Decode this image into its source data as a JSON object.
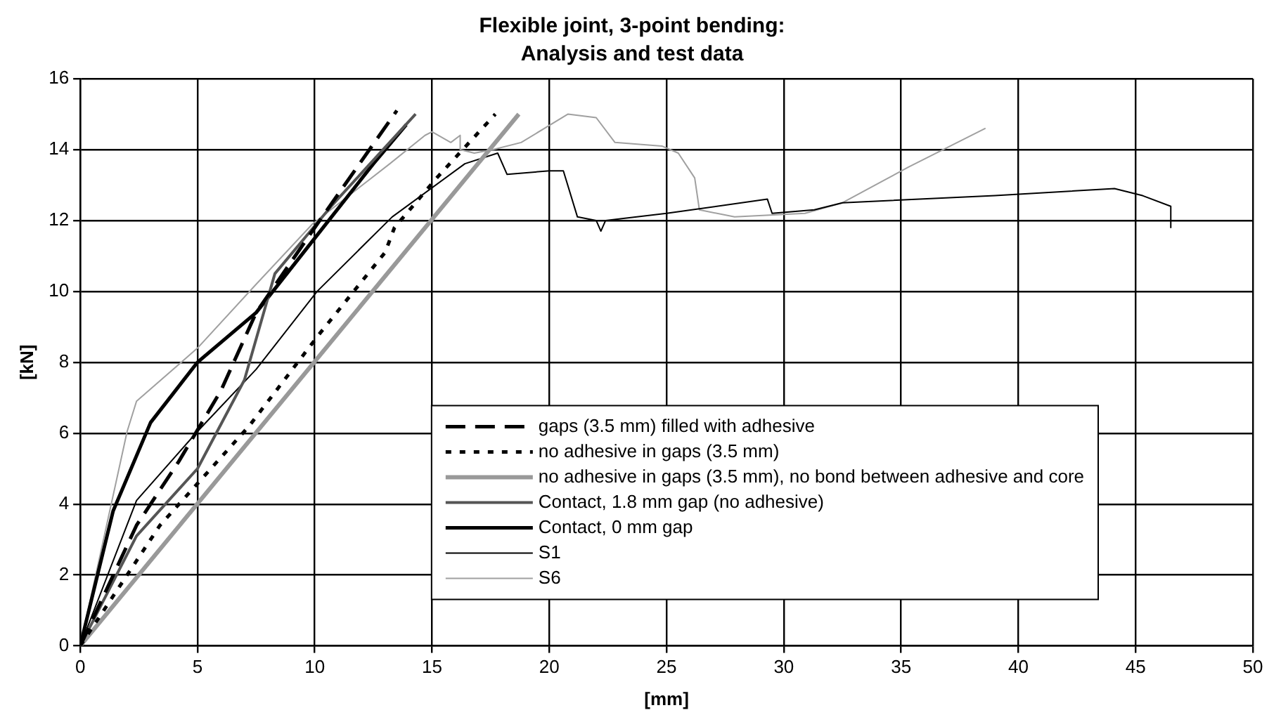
{
  "chart_data": {
    "type": "line",
    "title": "Flexible joint, 3-point bending:",
    "subtitle": "Analysis and test data",
    "xlabel": "[mm]",
    "ylabel": "[kN]",
    "xlim": [
      0,
      50
    ],
    "xticks": [
      0,
      5,
      10,
      15,
      20,
      25,
      30,
      35,
      40,
      45,
      50
    ],
    "ylim": [
      0,
      16
    ],
    "yticks": [
      0,
      2,
      4,
      6,
      8,
      10,
      12,
      14,
      16
    ],
    "grid": true,
    "legend": "bottom right",
    "marker": "none",
    "series": [
      {
        "name": "gaps (3.5 mm) filled with adhesive",
        "color": "#000000",
        "line_style": "dashed",
        "x": [
          0,
          2.4,
          4.2,
          6.0,
          7.5,
          10,
          13.5
        ],
        "values": [
          0,
          3.4,
          5.2,
          7.2,
          9.4,
          11.8,
          15.1
        ]
      },
      {
        "name": "no adhesive in gaps (3.5 mm)",
        "color": "#000000",
        "line_style": "dotted",
        "x": [
          0,
          3.4,
          7.2,
          10.2,
          13,
          13.4,
          15.2,
          17.7
        ],
        "values": [
          0,
          3.4,
          6.2,
          8.8,
          11.1,
          11.8,
          13.2,
          15.0
        ]
      },
      {
        "name": "no adhesive in gaps (3.5 mm), no bond between adhesive and core",
        "color": "#999999",
        "line_style": "solid",
        "x": [
          0,
          18.7
        ],
        "values": [
          0,
          15.0
        ]
      },
      {
        "name": "Contact, 1.8 mm gap (no adhesive)",
        "color": "#555555",
        "line_style": "solid",
        "x": [
          0,
          2.4,
          5,
          7,
          8.3,
          10.7,
          14.3
        ],
        "values": [
          0,
          3.1,
          5.0,
          7.5,
          10.5,
          12.4,
          15.0
        ]
      },
      {
        "name": "Contact, 0 mm gap",
        "color": "#000000",
        "line_style": "solid",
        "x": [
          0,
          1.4,
          3.0,
          5,
          7.5,
          10,
          12.5,
          13.9
        ],
        "values": [
          0,
          3.8,
          6.3,
          8.0,
          9.4,
          11.5,
          13.6,
          14.7
        ]
      },
      {
        "name": "S1",
        "color": "#000000",
        "line_style": "solid",
        "x": [
          0,
          2.4,
          5,
          7.5,
          10.1,
          13.3,
          16.4,
          17.8,
          18.2,
          20.0,
          20.6,
          21.2,
          22.0,
          22.2,
          22.4,
          25.0,
          29.3,
          29.5,
          31.3,
          32.5,
          39,
          44.1,
          45.3,
          46.5,
          46.5
        ],
        "values": [
          0,
          4.1,
          6.05,
          7.8,
          10.0,
          12.1,
          13.6,
          13.9,
          13.3,
          13.4,
          13.4,
          12.1,
          12.0,
          11.7,
          12.0,
          12.2,
          12.6,
          12.2,
          12.3,
          12.5,
          12.7,
          12.9,
          12.7,
          12.4,
          11.8
        ]
      },
      {
        "name": "S6",
        "color": "#a0a0a0",
        "line_style": "solid",
        "x": [
          0,
          2.0,
          2.4,
          5,
          7.5,
          9.9,
          13.2,
          14.7,
          15.0,
          15.8,
          16.2,
          16.2,
          16.8,
          17.6,
          18.8,
          20.8,
          22.0,
          22.8,
          24.8,
          25.5,
          26.2,
          26.4,
          27.9,
          30.9,
          32.5,
          35.3,
          38.6
        ],
        "values": [
          0,
          6.05,
          6.9,
          8.4,
          10.2,
          11.9,
          13.6,
          14.4,
          14.5,
          14.2,
          14.4,
          14.0,
          13.9,
          14.0,
          14.2,
          15.0,
          14.9,
          14.2,
          14.1,
          13.9,
          13.2,
          12.3,
          12.1,
          12.2,
          12.5,
          13.5,
          14.6
        ]
      }
    ]
  }
}
